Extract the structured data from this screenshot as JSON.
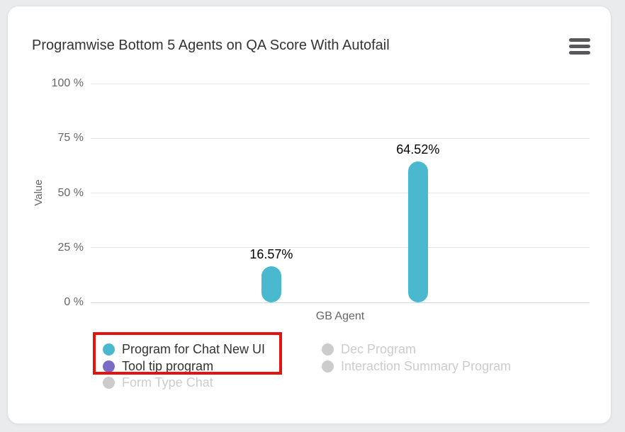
{
  "page": {
    "background": "#eaebed"
  },
  "card": {
    "menu_icon": "hamburger-menu-icon"
  },
  "chart_data": {
    "type": "bar",
    "title": "Programwise Bottom 5 Agents on QA Score With Autofail",
    "xlabel": "GB Agent",
    "ylabel": "Value",
    "ylim": [
      0,
      100
    ],
    "grid": true,
    "legend_position": "bottom",
    "yticks": [
      {
        "value": 0,
        "label": "0 %"
      },
      {
        "value": 25,
        "label": "25 %"
      },
      {
        "value": 50,
        "label": "50 %"
      },
      {
        "value": 75,
        "label": "75 %"
      },
      {
        "value": 100,
        "label": "100 %"
      }
    ],
    "bars": [
      {
        "series": "Program for Chat New UI",
        "value": 16.57,
        "label": "16.57%",
        "color": "#4ab9d0",
        "x_frac": 0.362
      },
      {
        "series": "Program for Chat New UI",
        "value": 64.52,
        "label": "64.52%",
        "color": "#4ab9d0",
        "x_frac": 0.656
      }
    ],
    "legend": {
      "items": [
        {
          "label": "Program for Chat New UI",
          "color": "#4ab9d0",
          "enabled": true,
          "column": 0,
          "row": 0
        },
        {
          "label": "Tool tip program",
          "color": "#7a6bc8",
          "enabled": true,
          "column": 0,
          "row": 1
        },
        {
          "label": "Form Type Chat",
          "color": "#cccccc",
          "enabled": false,
          "column": 0,
          "row": 2
        },
        {
          "label": "Dec Program",
          "color": "#cccccc",
          "enabled": false,
          "column": 1,
          "row": 0
        },
        {
          "label": "Interaction Summary Program",
          "color": "#cccccc",
          "enabled": false,
          "column": 1,
          "row": 1
        }
      ]
    }
  },
  "annotation": {
    "type": "highlight-box",
    "color": "#e41310",
    "highlighted_items": [
      "Program for Chat New UI",
      "Tool tip program"
    ]
  },
  "colors": {
    "axis_text": "#666666",
    "title_text": "#333333",
    "data_label": "#000000",
    "gridline": "#e6e6e6",
    "axis_line": "#ccd6eb",
    "disabled": "#cccccc"
  }
}
